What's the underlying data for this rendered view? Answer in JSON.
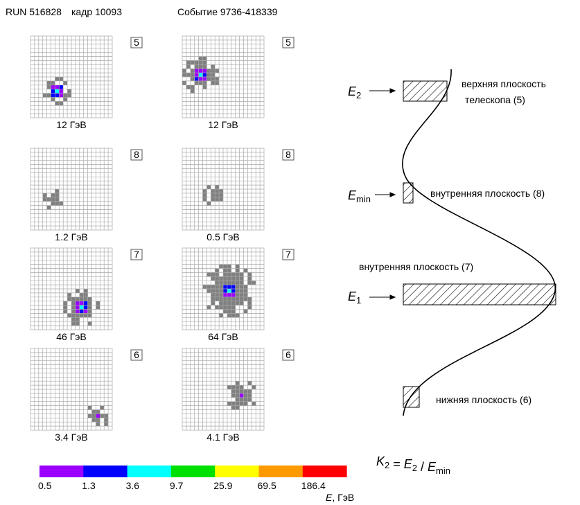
{
  "header": {
    "run": "RUN 516828",
    "frame": "кадр 10093",
    "event": "Событие 9736-418339"
  },
  "panels": [
    {
      "plane": "5",
      "energy": "12 ГэВ"
    },
    {
      "plane": "5",
      "energy": "12 ГэВ"
    },
    {
      "plane": "8",
      "energy": "1.2 ГэВ"
    },
    {
      "plane": "8",
      "energy": "0.5 ГэВ"
    },
    {
      "plane": "7",
      "energy": "46 ГэВ"
    },
    {
      "plane": "7",
      "energy": "64 ГэВ"
    },
    {
      "plane": "6",
      "energy": "3.4 ГэВ"
    },
    {
      "plane": "6",
      "energy": "4.1 ГэВ"
    }
  ],
  "diagram": {
    "e2": {
      "symbol": "E",
      "sub": "2"
    },
    "top_plane": [
      "верхняя плоскость",
      "телескопа (5)"
    ],
    "emin": {
      "symbol": "E",
      "sub": "min"
    },
    "plane8": "внутренняя плоскость (8)",
    "plane7": "внутренняя плоскость (7)",
    "e1": {
      "symbol": "E",
      "sub": "1"
    },
    "plane6": "нижняя плоскость (6)"
  },
  "formula": [
    {
      "text": "K",
      "sub": "2"
    },
    {
      "text": " = "
    },
    {
      "text": "E",
      "sub": "2"
    },
    {
      "text": " / "
    },
    {
      "text": "E",
      "sub": "min"
    }
  ],
  "colorbar": {
    "ticks": [
      0.5,
      1.3,
      3.6,
      9.7,
      25.9,
      69.5,
      186.4
    ],
    "colors": [
      "#9b00ff",
      "#0000ff",
      "#00ffff",
      "#00e000",
      "#ffff00",
      "#ff9900",
      "#ff0000"
    ],
    "label": {
      "symbol": "E",
      "unit": ", ГэВ"
    }
  }
}
